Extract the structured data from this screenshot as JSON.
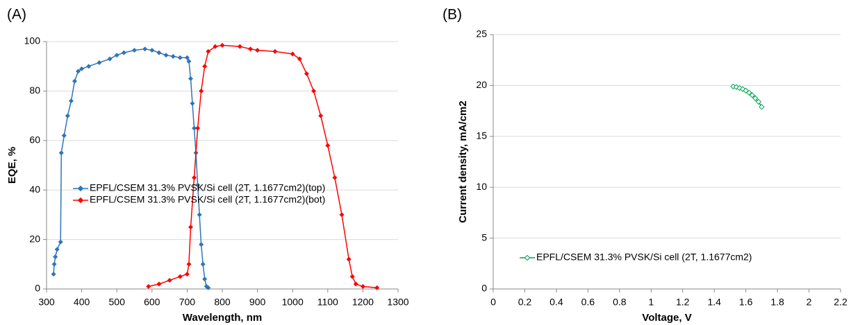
{
  "chart_data": [
    {
      "type": "line",
      "title": "(A)",
      "x_label": "Wavelength, nm",
      "y_label": "EQE, %",
      "xlim": [
        300,
        1300
      ],
      "xticks": [
        300,
        400,
        500,
        600,
        700,
        800,
        900,
        1000,
        1100,
        1200,
        1300
      ],
      "ylim": [
        0,
        100
      ],
      "yticks": [
        0,
        20,
        40,
        60,
        80,
        100
      ],
      "grid": true,
      "legend": "center-left",
      "series": [
        {
          "name": "EPFL/CSEM 31.3% PVSK/Si cell (2T, 1.1677cm2)(top)",
          "color": "#2e75b6",
          "x": [
            320,
            322,
            325,
            330,
            340,
            342,
            350,
            360,
            370,
            380,
            390,
            400,
            420,
            450,
            480,
            500,
            520,
            550,
            580,
            600,
            620,
            640,
            660,
            680,
            700,
            705,
            710,
            715,
            720,
            725,
            730,
            735,
            740,
            745,
            750,
            755,
            760
          ],
          "values": [
            6,
            10,
            13,
            16,
            19,
            55,
            62,
            70,
            76,
            84,
            88,
            89,
            90,
            91.5,
            93,
            94.5,
            95.5,
            96.5,
            97,
            96.5,
            95.5,
            94.5,
            94,
            93.5,
            93.5,
            92,
            85,
            75,
            65,
            55,
            42,
            30,
            18,
            10,
            4,
            1,
            0.5
          ]
        },
        {
          "name": "EPFL/CSEM 31.3% PVSK/Si cell (2T, 1.1677cm2)(bot)",
          "color": "#ff0000",
          "x": [
            590,
            620,
            650,
            680,
            700,
            705,
            710,
            720,
            730,
            740,
            750,
            760,
            780,
            800,
            850,
            880,
            900,
            950,
            1000,
            1020,
            1040,
            1060,
            1080,
            1100,
            1120,
            1140,
            1160,
            1170,
            1180,
            1200,
            1240
          ],
          "values": [
            1,
            2,
            3.5,
            5,
            6,
            10,
            25,
            45,
            65,
            80,
            90,
            96,
            98,
            98.5,
            98,
            97,
            96.5,
            96,
            95,
            93,
            87,
            80,
            70,
            58,
            45,
            30,
            12,
            5,
            2,
            1,
            0.5
          ]
        }
      ]
    },
    {
      "type": "line",
      "title": "(B)",
      "x_label": "Voltage, V",
      "y_label": "Current density, mA/cm2",
      "xlim": [
        0,
        2.2
      ],
      "xticks": [
        0,
        0.2,
        0.4,
        0.6,
        0.8,
        1,
        1.2,
        1.4,
        1.6,
        1.8,
        2,
        2.2
      ],
      "ylim": [
        0,
        25
      ],
      "yticks": [
        0,
        5,
        10,
        15,
        20,
        25
      ],
      "grid": true,
      "legend": "lower-left",
      "series": [
        {
          "name": "EPFL/CSEM 31.3% PVSK/Si cell (2T, 1.1677cm2)",
          "color": "#00a651",
          "x": [
            1.52,
            1.54,
            1.56,
            1.58,
            1.6,
            1.62,
            1.64,
            1.66,
            1.68,
            1.7
          ],
          "values": [
            19.9,
            19.85,
            19.75,
            19.65,
            19.5,
            19.3,
            19.05,
            18.75,
            18.4,
            17.9
          ]
        }
      ]
    }
  ]
}
